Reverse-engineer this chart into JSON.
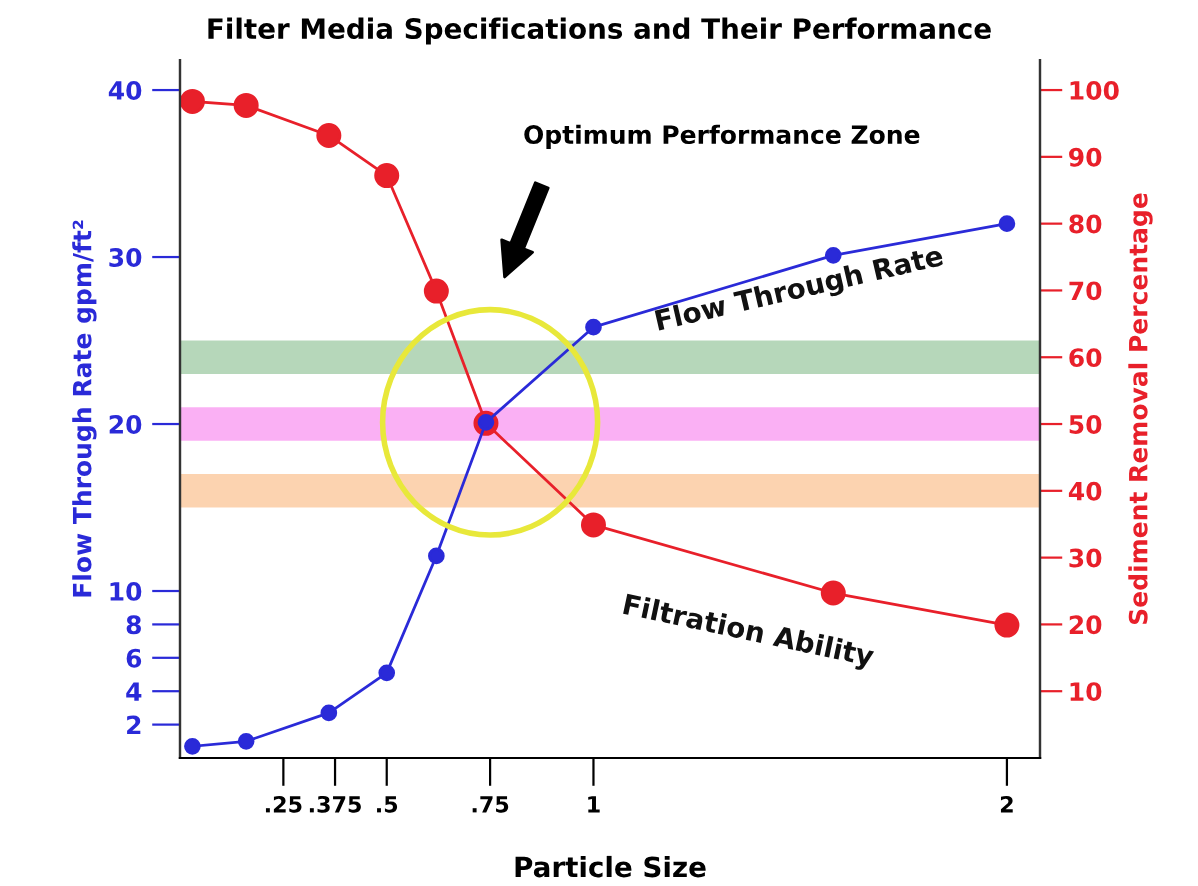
{
  "chart_data": {
    "type": "line",
    "title": "Filter Media Specifications and Their Performance",
    "xlabel": "Particle Size",
    "ylabel": "Flow Through Rate gpm/ft²",
    "y2label": "Sediment Removal Percentage",
    "x": [
      0.03,
      0.16,
      0.36,
      0.5,
      0.62,
      0.74,
      1.0,
      1.58,
      2.0
    ],
    "series": [
      {
        "name": "Flow Through Rate",
        "color": "#2a2ad8",
        "values": [
          0.7,
          1.0,
          2.7,
          5.1,
          12.1,
          20.1,
          25.8,
          30.1,
          32.0
        ]
      },
      {
        "name": "Filtration Ability",
        "color": "#e8202a",
        "axis": "y2",
        "values": [
          98.3,
          97.7,
          93.2,
          87.2,
          69.9,
          50.1,
          34.9,
          24.7,
          19.9
        ]
      }
    ],
    "xlim": [
      0,
      2.08
    ],
    "xticks": [
      {
        "value": 0.25,
        "label": ".25"
      },
      {
        "value": 0.375,
        "label": ".375"
      },
      {
        "value": 0.5,
        "label": ".5"
      },
      {
        "value": 0.75,
        "label": ".75"
      },
      1,
      2
    ],
    "ylim": [
      0,
      41.8
    ],
    "yticks": [
      2,
      4,
      6,
      8,
      10,
      20,
      30,
      40
    ],
    "y2lim": [
      0,
      104.5
    ],
    "y2ticks": [
      10,
      20,
      30,
      40,
      50,
      60,
      70,
      80,
      90,
      100
    ],
    "bands": [
      {
        "axis": "y2",
        "from": 57.5,
        "to": 62.5,
        "color": "#2e8b3a"
      },
      {
        "axis": "y2",
        "from": 47.5,
        "to": 52.5,
        "color": "#f01ee0"
      },
      {
        "axis": "y2",
        "from": 37.5,
        "to": 42.5,
        "color": "#f7821e"
      }
    ],
    "annotations": [
      "Optimum Performance Zone"
    ],
    "marker": "circle",
    "line_style": "solid",
    "grid": false,
    "legend": false
  }
}
